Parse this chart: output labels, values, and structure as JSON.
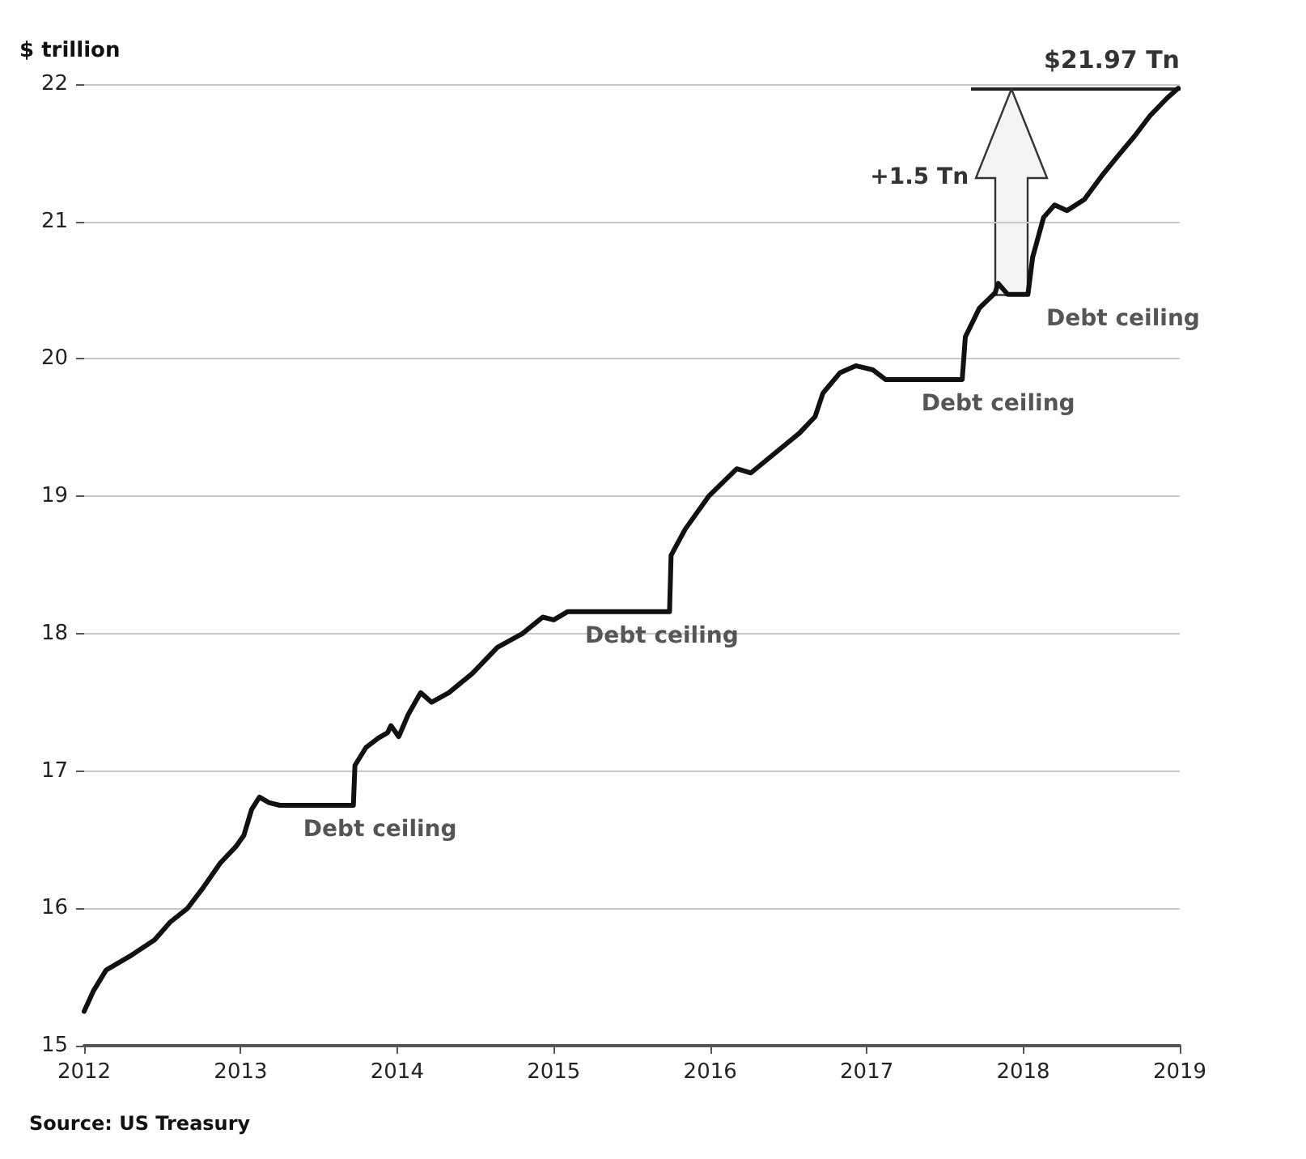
{
  "chart_data": {
    "type": "line",
    "ylabel": "$ trillion",
    "xlim": [
      2012,
      2019
    ],
    "xticks": [
      2012,
      2013,
      2014,
      2015,
      2016,
      2017,
      2018,
      2019
    ],
    "ylim": [
      15,
      22
    ],
    "yticks": [
      15,
      16,
      17,
      18,
      19,
      20,
      21,
      22
    ],
    "grid": "y",
    "marker": "none",
    "line_style": "solid",
    "x": [
      2012.0,
      2012.06,
      2012.14,
      2012.29,
      2012.45,
      2012.55,
      2012.66,
      2012.76,
      2012.87,
      2012.97,
      2013.02,
      2013.07,
      2013.12,
      2013.18,
      2013.25,
      2013.72,
      2013.73,
      2013.8,
      2013.88,
      2013.94,
      2013.96,
      2014.01,
      2014.07,
      2014.15,
      2014.22,
      2014.33,
      2014.48,
      2014.64,
      2014.8,
      2014.93,
      2015.0,
      2015.09,
      2015.74,
      2015.75,
      2015.84,
      2015.99,
      2016.17,
      2016.26,
      2016.41,
      2016.57,
      2016.67,
      2016.72,
      2016.83,
      2016.93,
      2017.04,
      2017.12,
      2017.61,
      2017.63,
      2017.72,
      2017.82,
      2017.84,
      2017.9,
      2018.03,
      2018.06,
      2018.13,
      2018.2,
      2018.28,
      2018.39,
      2018.5,
      2018.6,
      2018.71,
      2018.81,
      2018.92,
      2018.99
    ],
    "series": [
      {
        "color": "#111111",
        "values": [
          15.25,
          15.4,
          15.55,
          15.65,
          15.77,
          15.9,
          16.0,
          16.15,
          16.33,
          16.45,
          16.53,
          16.72,
          16.81,
          16.77,
          16.75,
          16.75,
          17.04,
          17.17,
          17.24,
          17.28,
          17.33,
          17.25,
          17.41,
          17.57,
          17.5,
          17.57,
          17.71,
          17.9,
          18.0,
          18.12,
          18.1,
          18.16,
          18.16,
          18.57,
          18.76,
          19.0,
          19.2,
          19.17,
          19.31,
          19.46,
          19.58,
          19.75,
          19.9,
          19.95,
          19.92,
          19.85,
          19.85,
          20.16,
          20.37,
          20.48,
          20.55,
          20.47,
          20.47,
          20.74,
          21.03,
          21.12,
          21.08,
          21.16,
          21.33,
          21.47,
          21.62,
          21.77,
          21.9,
          21.97
        ]
      }
    ],
    "annotations": [
      {
        "text": "$21.97 Tn",
        "x": 2019,
        "y": 21.97
      },
      "+1.5 Tn",
      {
        "text": "Debt ceiling",
        "x": 2013.4,
        "y": 16.75
      },
      {
        "text": "Debt ceiling",
        "x": 2015.2,
        "y": 18.16
      },
      {
        "text": "Debt ceiling",
        "x": 2017.35,
        "y": 19.85
      },
      {
        "text": "Debt ceiling",
        "x": 2017.92,
        "y": 20.47
      },
      "Source: US Treasury"
    ]
  }
}
